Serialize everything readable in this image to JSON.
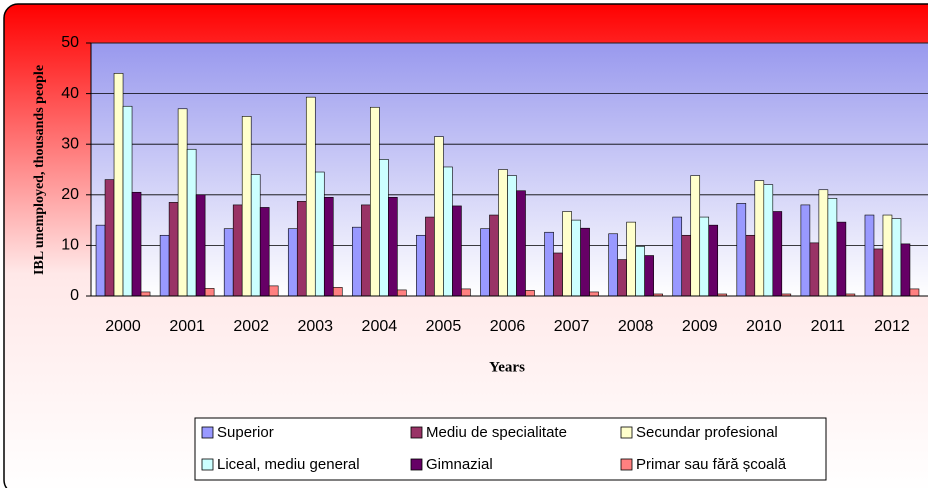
{
  "chart_data": {
    "type": "bar",
    "y_label": "IBL unemployed, thousands people",
    "x_label": "Years",
    "categories": [
      "2000",
      "2001",
      "2002",
      "2003",
      "2004",
      "2005",
      "2006",
      "2007",
      "2008",
      "2009",
      "2010",
      "2011",
      "2012"
    ],
    "series": [
      {
        "name": "Superior",
        "color": "#9999ff",
        "values": [
          14,
          12,
          13.3,
          13.3,
          13.6,
          12,
          13.3,
          12.6,
          12.3,
          15.6,
          18.3,
          18,
          16
        ]
      },
      {
        "name": "Mediu de specialitate",
        "color": "#993366",
        "values": [
          23,
          18.5,
          18,
          18.7,
          18,
          15.6,
          16,
          8.5,
          7.2,
          12,
          12,
          10.5,
          9.3
        ]
      },
      {
        "name": "Secundar profesional",
        "color": "#ffffcc",
        "values": [
          44,
          37,
          35.5,
          39.3,
          37.3,
          31.5,
          25,
          16.7,
          14.6,
          23.8,
          22.8,
          21,
          16
        ]
      },
      {
        "name": "Liceal, mediu general",
        "color": "#ccffff",
        "values": [
          37.5,
          29,
          24,
          24.5,
          27,
          25.5,
          23.8,
          15,
          9.8,
          15.6,
          22,
          19.3,
          15.3
        ]
      },
      {
        "name": "Gimnazial",
        "color": "#660066",
        "values": [
          20.5,
          20,
          17.5,
          19.5,
          19.5,
          17.8,
          20.8,
          13.4,
          8,
          14,
          16.7,
          14.6,
          10.3
        ]
      },
      {
        "name": "Primar sau fără școală",
        "color": "#ff8080",
        "values": [
          0.8,
          1.5,
          2,
          1.7,
          1.2,
          1.4,
          1.1,
          0.8,
          0.4,
          0.4,
          0.4,
          0.4,
          1.4
        ]
      }
    ],
    "ylim": [
      0,
      50
    ],
    "yticks": [
      0,
      10,
      20,
      30,
      40,
      50
    ],
    "grid": true
  }
}
